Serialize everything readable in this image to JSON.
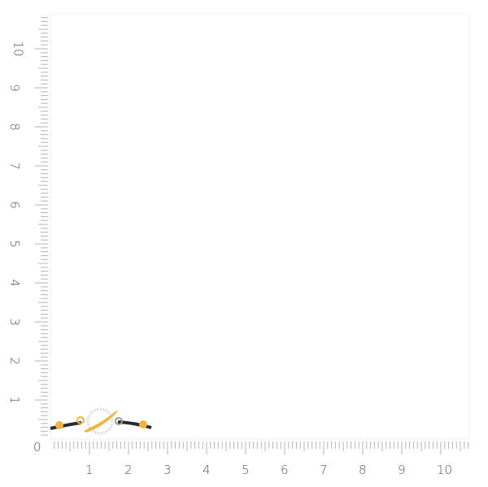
{
  "ruler": {
    "origin_label": "0",
    "x_labels": [
      "1",
      "2",
      "3",
      "4",
      "5",
      "6",
      "7",
      "8",
      "9",
      "10"
    ],
    "y_labels": [
      "1",
      "2",
      "3",
      "4",
      "5",
      "6",
      "7",
      "8",
      "9",
      "10"
    ],
    "minor_divisions": 10,
    "tick_color": "#b5b5b5",
    "label_color": "#555555"
  },
  "product": {
    "type": "bracelet",
    "metal_color": "#f0b43c",
    "cord_color": "#2b2b2b",
    "stone_color": "#e2e2e2"
  }
}
